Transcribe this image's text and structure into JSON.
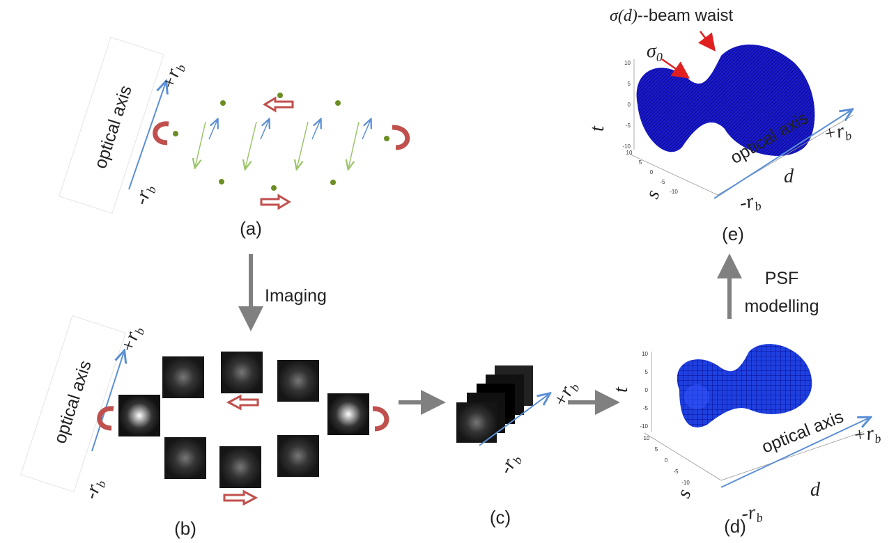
{
  "panel_a": {
    "caption": "(a)",
    "axis_title": "optical axis",
    "axis_start": {
      "text": "-r",
      "sub": "b"
    },
    "axis_end": {
      "text": "+r",
      "sub": "b"
    }
  },
  "imaging_label": "Imaging",
  "panel_b": {
    "caption": "(b)",
    "axis_title": "optical axis",
    "axis_start": {
      "text": "-r",
      "sub": "b"
    },
    "axis_end": {
      "text": "+r",
      "sub": "b"
    }
  },
  "panel_c": {
    "caption": "(c)",
    "axis_start": {
      "text": "-r",
      "sub": "b"
    },
    "axis_end": {
      "text": "+r",
      "sub": "b"
    }
  },
  "panel_d": {
    "caption": "(d)",
    "axis_title": "optical axis",
    "axis_start": {
      "text": "-r",
      "sub": "b"
    },
    "axis_end": {
      "text": "+r",
      "sub": "b"
    },
    "t_label": "t",
    "s_label": "s",
    "d_label": "d",
    "t_ticks": [
      "10",
      "5",
      "0",
      "-5",
      "-10"
    ],
    "s_ticks": [
      "10",
      "5",
      "0",
      "-5",
      "-10"
    ]
  },
  "psf_label": {
    "line1": "PSF",
    "line2": "modelling"
  },
  "panel_e": {
    "caption": "(e)",
    "axis_title": "optical axis",
    "axis_start": {
      "text": "-r",
      "sub": "b"
    },
    "axis_end": {
      "text": "+r",
      "sub": "b"
    },
    "t_label": "t",
    "s_label": "s",
    "d_label": "d",
    "t_ticks": [
      "10",
      "5",
      "0",
      "-5",
      "-10"
    ],
    "s_ticks": [
      "10",
      "5",
      "0",
      "-5",
      "-10"
    ],
    "waist_label": {
      "symbol": "σ(d)",
      "text": "--beam waist"
    },
    "sigma0": {
      "text": "σ",
      "sub": "0"
    }
  }
}
